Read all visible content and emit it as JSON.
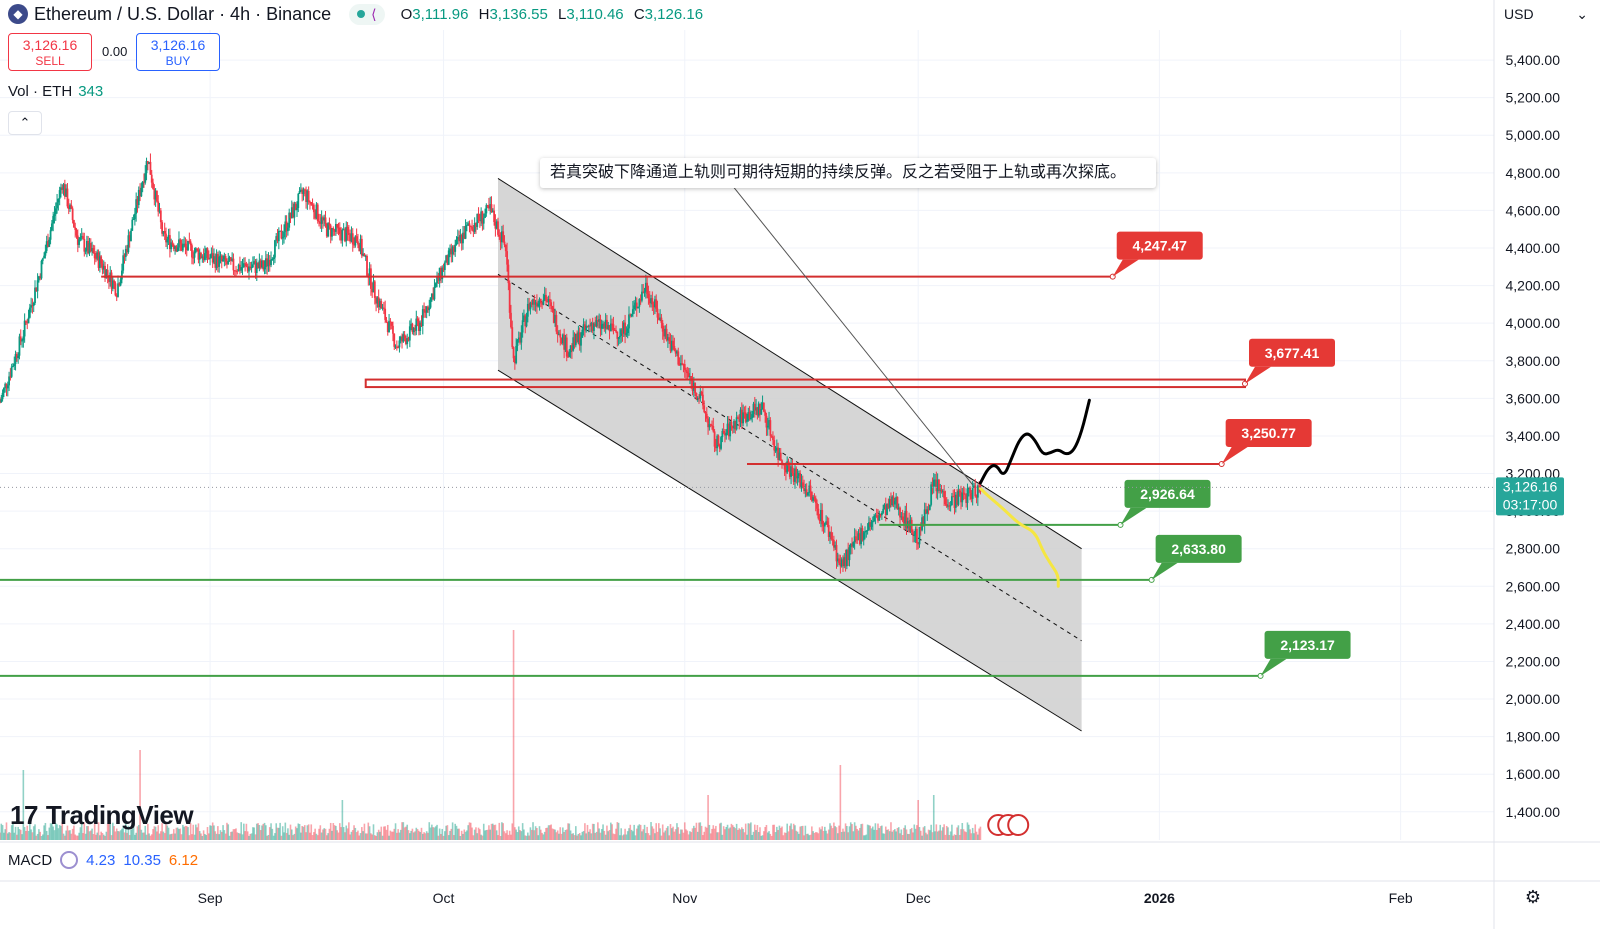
{
  "header": {
    "title": "Ethereum / U.S. Dollar · 4h · Binance",
    "ohlc": {
      "o_label": "O",
      "o": "3,111.96",
      "h_label": "H",
      "h": "3,136.55",
      "l_label": "L",
      "l": "3,110.46",
      "c_label": "C",
      "c": "3,126.16"
    }
  },
  "trade": {
    "sell_price": "3,126.16",
    "sell_label": "SELL",
    "spread": "0.00",
    "buy_price": "3,126.16",
    "buy_label": "BUY"
  },
  "volume": {
    "label": "Vol · ETH",
    "value": "343"
  },
  "collapse_glyph": "⌃",
  "currency": {
    "label": "USD",
    "chevron": "⌄"
  },
  "macd": {
    "label": "MACD",
    "v1": "4.23",
    "v2": "10.35",
    "v3": "6.12"
  },
  "logo": {
    "mark": "17",
    "text": "TradingView"
  },
  "annotation": "若真突破下降通道上轨则可期待短期的持续反弹。反之若受阻于上轨或再次探底。",
  "current_price": {
    "price": "3,126.16",
    "countdown": "03:17:00"
  },
  "colors": {
    "up": "#089981",
    "down": "#f23645",
    "resistance": "#d32f2f",
    "support": "#43a047",
    "channel_fill": "#cfcfcf",
    "bullish_path": "#000000",
    "bearish_path": "#f5e642",
    "label_red": "#e53935",
    "label_green": "#43a047",
    "current_badge": "#26a69a"
  },
  "chart_data": {
    "type": "candlestick",
    "symbol": "ETHUSD",
    "interval": "4h",
    "ylim": [
      1250,
      5560
    ],
    "y_ticks": [
      "1,400.00",
      "1,600.00",
      "1,800.00",
      "2,000.00",
      "2,200.00",
      "2,400.00",
      "2,600.00",
      "2,800.00",
      "3,000.00",
      "3,200.00",
      "3,400.00",
      "3,600.00",
      "3,800.00",
      "4,000.00",
      "4,200.00",
      "4,400.00",
      "4,600.00",
      "4,800.00",
      "5,000.00",
      "5,200.00",
      "5,400.00"
    ],
    "x_ticks": [
      "Sep",
      "Oct",
      "Nov",
      "Dec",
      "2026",
      "Feb"
    ],
    "x_tick_dates": [
      "2025-09-01",
      "2025-10-01",
      "2025-11-01",
      "2025-12-01",
      "2026-01-01",
      "2026-02-01"
    ],
    "xlim_dates": [
      "2025-08-05",
      "2026-02-13"
    ],
    "price_path_anchors": [
      [
        "2025-08-05",
        3580
      ],
      [
        "2025-08-08",
        3950
      ],
      [
        "2025-08-10",
        4250
      ],
      [
        "2025-08-13",
        4750
      ],
      [
        "2025-08-15",
        4450
      ],
      [
        "2025-08-18",
        4320
      ],
      [
        "2025-08-20",
        4180
      ],
      [
        "2025-08-24",
        4880
      ],
      [
        "2025-08-26",
        4450
      ],
      [
        "2025-08-30",
        4380
      ],
      [
        "2025-09-04",
        4300
      ],
      [
        "2025-09-08",
        4300
      ],
      [
        "2025-09-13",
        4700
      ],
      [
        "2025-09-16",
        4500
      ],
      [
        "2025-09-20",
        4450
      ],
      [
        "2025-09-22",
        4180
      ],
      [
        "2025-09-25",
        3880
      ],
      [
        "2025-09-28",
        4000
      ],
      [
        "2025-10-01",
        4300
      ],
      [
        "2025-10-04",
        4500
      ],
      [
        "2025-10-07",
        4600
      ],
      [
        "2025-10-09",
        4400
      ],
      [
        "2025-10-10",
        3800
      ],
      [
        "2025-10-12",
        4100
      ],
      [
        "2025-10-14",
        4150
      ],
      [
        "2025-10-17",
        3850
      ],
      [
        "2025-10-20",
        4000
      ],
      [
        "2025-10-24",
        3950
      ],
      [
        "2025-10-27",
        4200
      ],
      [
        "2025-10-30",
        3900
      ],
      [
        "2025-11-03",
        3600
      ],
      [
        "2025-11-05",
        3350
      ],
      [
        "2025-11-08",
        3500
      ],
      [
        "2025-11-11",
        3550
      ],
      [
        "2025-11-13",
        3300
      ],
      [
        "2025-11-17",
        3100
      ],
      [
        "2025-11-20",
        2850
      ],
      [
        "2025-11-21",
        2700
      ],
      [
        "2025-11-24",
        2900
      ],
      [
        "2025-11-28",
        3050
      ],
      [
        "2025-12-01",
        2850
      ],
      [
        "2025-12-03",
        3150
      ],
      [
        "2025-12-05",
        3050
      ],
      [
        "2025-12-08",
        3100
      ],
      [
        "2025-12-09",
        3126
      ]
    ],
    "volume_spikes": [
      [
        "2025-08-08",
        70
      ],
      [
        "2025-08-23",
        90
      ],
      [
        "2025-09-18",
        40
      ],
      [
        "2025-10-10",
        210
      ],
      [
        "2025-11-04",
        45
      ],
      [
        "2025-11-21",
        75
      ],
      [
        "2025-12-01",
        40
      ],
      [
        "2025-12-03",
        45
      ]
    ],
    "horizontal_levels": [
      {
        "kind": "resistance",
        "price": 4247.47,
        "label": "4,247.47",
        "from": "2025-08-18",
        "to": "2025-12-26"
      },
      {
        "kind": "resistance_zone",
        "price": 3677.41,
        "price_low": 3660,
        "price_high": 3700,
        "label": "3,677.41",
        "from": "2025-09-21",
        "to": "2026-01-12"
      },
      {
        "kind": "resistance",
        "price": 3250.77,
        "label": "3,250.77",
        "from": "2025-11-09",
        "to": "2026-01-09"
      },
      {
        "kind": "support",
        "price": 2926.64,
        "label": "2,926.64",
        "from": "2025-11-26",
        "to": "2025-12-27"
      },
      {
        "kind": "support",
        "price": 2633.8,
        "label": "2,633.80",
        "from": "2025-08-05",
        "to": "2025-12-31"
      },
      {
        "kind": "support",
        "price": 2123.17,
        "label": "2,123.17",
        "from": "2025-08-05",
        "to": "2026-01-14"
      }
    ],
    "descending_channel": {
      "upper": [
        [
          "2025-10-08",
          4770
        ],
        [
          "2025-12-22",
          2800
        ]
      ],
      "lower": [
        [
          "2025-10-08",
          3750
        ],
        [
          "2025-12-22",
          1830
        ]
      ],
      "mid": [
        [
          "2025-10-08",
          4260
        ],
        [
          "2025-12-22",
          2310
        ]
      ]
    },
    "annotation_pointer": {
      "from": [
        "2025-11-06",
        4790
      ],
      "to": [
        "2025-12-08",
        3140
      ]
    },
    "bullish_path": [
      [
        "2025-12-09",
        3150
      ],
      [
        "2025-12-10",
        3230
      ],
      [
        "2025-12-11",
        3250
      ],
      [
        "2025-12-12",
        3180
      ],
      [
        "2025-12-13",
        3280
      ],
      [
        "2025-12-14",
        3380
      ],
      [
        "2025-12-15",
        3420
      ],
      [
        "2025-12-16",
        3380
      ],
      [
        "2025-12-17",
        3300
      ],
      [
        "2025-12-18",
        3310
      ],
      [
        "2025-12-19",
        3330
      ],
      [
        "2025-12-20",
        3300
      ],
      [
        "2025-12-21",
        3320
      ],
      [
        "2025-12-22",
        3420
      ],
      [
        "2025-12-23",
        3590
      ]
    ],
    "bearish_path": [
      [
        "2025-12-09",
        3120
      ],
      [
        "2025-12-10",
        3080
      ],
      [
        "2025-12-12",
        3010
      ],
      [
        "2025-12-14",
        2930
      ],
      [
        "2025-12-16",
        2890
      ],
      [
        "2025-12-17",
        2790
      ],
      [
        "2025-12-18",
        2720
      ],
      [
        "2025-12-19",
        2660
      ],
      [
        "2025-12-19",
        2600
      ]
    ]
  }
}
